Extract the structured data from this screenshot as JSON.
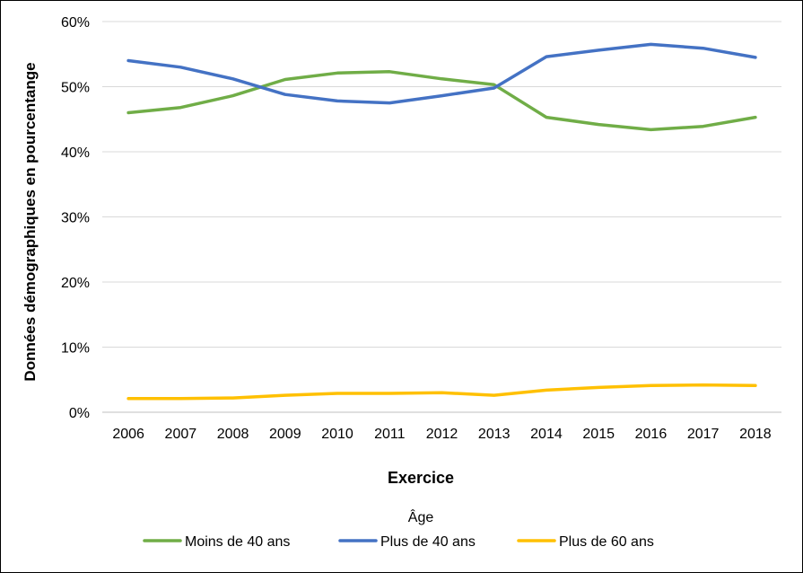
{
  "chart_data": {
    "type": "line",
    "title": "",
    "xlabel": "Exercice",
    "ylabel": "Données démographiques en pourcentange",
    "legend_title": "Âge",
    "legend_position": "bottom",
    "grid": true,
    "ylim": [
      0,
      60
    ],
    "yticks": [
      "0%",
      "10%",
      "20%",
      "30%",
      "40%",
      "50%",
      "60%"
    ],
    "categories": [
      "2006",
      "2007",
      "2008",
      "2009",
      "2010",
      "2011",
      "2012",
      "2013",
      "2014",
      "2015",
      "2016",
      "2017",
      "2018"
    ],
    "series": [
      {
        "name": "Moins de 40 ans",
        "color": "#70ad47",
        "values": [
          46.0,
          46.8,
          48.6,
          51.1,
          52.1,
          52.3,
          51.2,
          50.3,
          45.3,
          44.2,
          43.4,
          43.9,
          45.3
        ]
      },
      {
        "name": "Plus de 40 ans",
        "color": "#4472c4",
        "values": [
          54.0,
          53.0,
          51.2,
          48.8,
          47.8,
          47.5,
          48.6,
          49.8,
          54.6,
          55.6,
          56.5,
          55.9,
          54.5
        ]
      },
      {
        "name": "Plus de 60 ans",
        "color": "#ffc000",
        "values": [
          2.1,
          2.1,
          2.2,
          2.6,
          2.9,
          2.9,
          3.0,
          2.6,
          3.4,
          3.8,
          4.1,
          4.2,
          4.1
        ]
      }
    ]
  }
}
